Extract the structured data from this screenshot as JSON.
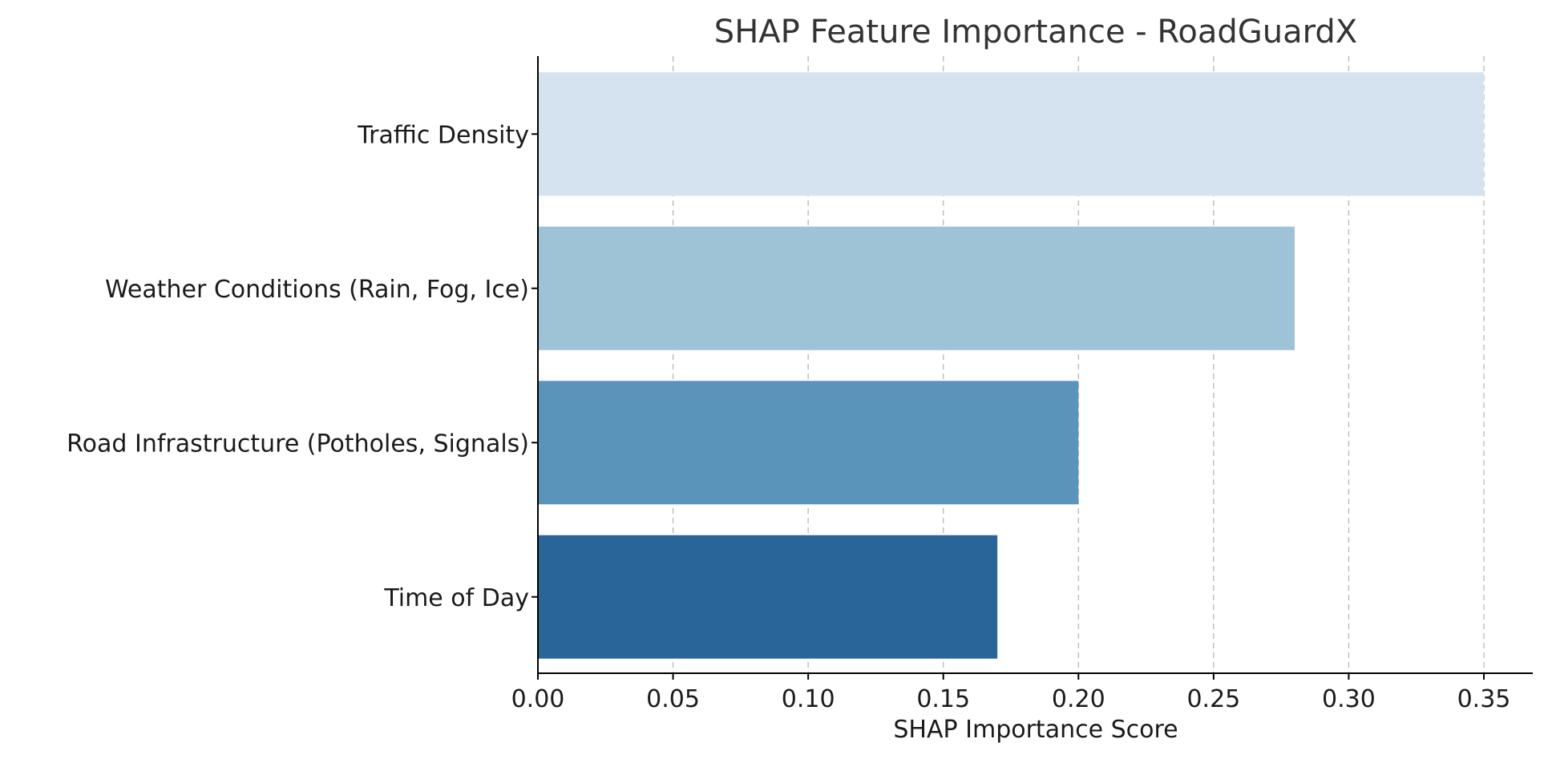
{
  "chart_data": {
    "type": "bar",
    "orientation": "horizontal",
    "title": "SHAP Feature Importance - RoadGuardX",
    "xlabel": "SHAP Importance Score",
    "ylabel": "",
    "xlim": [
      0,
      0.35
    ],
    "x_ticks": [
      "0.00",
      "0.05",
      "0.10",
      "0.15",
      "0.20",
      "0.25",
      "0.30",
      "0.35"
    ],
    "grid": "vertical dashed",
    "categories": [
      "Traffic Density",
      "Weather Conditions (Rain, Fog, Ice)",
      "Road Infrastructure (Potholes, Signals)",
      "Time of Day"
    ],
    "values": [
      0.35,
      0.28,
      0.2,
      0.17
    ],
    "colors": [
      "#d5e3f0",
      "#9ec2d6",
      "#5b94bb",
      "#2a6599"
    ]
  }
}
